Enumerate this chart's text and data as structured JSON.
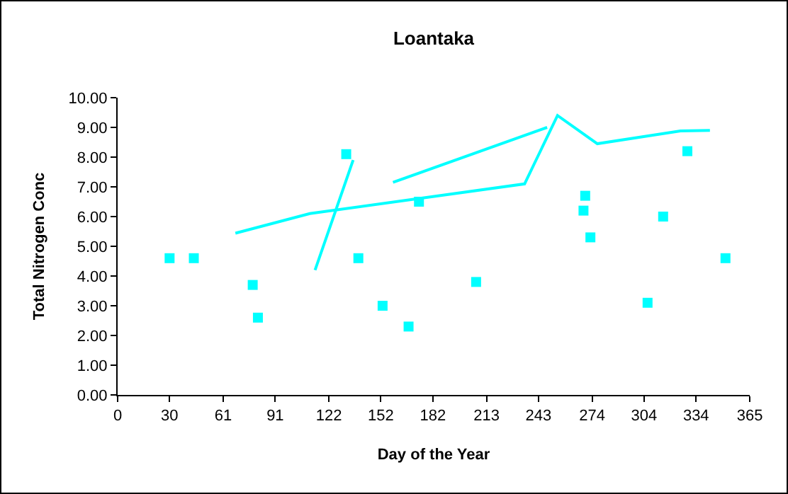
{
  "chart_data": {
    "type": "scatter",
    "title": "Loantaka",
    "xlabel": "Day of the Year",
    "ylabel": "Total Nitrogen Conc",
    "xlim": [
      0,
      365
    ],
    "xticks": [
      0,
      30,
      61,
      91,
      122,
      152,
      182,
      213,
      243,
      274,
      304,
      334,
      365
    ],
    "ylim": [
      0,
      10
    ],
    "yticks": [
      {
        "value": 0,
        "label": "0.00"
      },
      {
        "value": 1,
        "label": "1.00"
      },
      {
        "value": 2,
        "label": "2.00"
      },
      {
        "value": 3,
        "label": "3.00"
      },
      {
        "value": 4,
        "label": "4.00"
      },
      {
        "value": 5,
        "label": "5.00"
      },
      {
        "value": 6,
        "label": "6.00"
      },
      {
        "value": 7,
        "label": "7.00"
      },
      {
        "value": 8,
        "label": "8.00"
      },
      {
        "value": 9,
        "label": "9.00"
      },
      {
        "value": 10,
        "label": "10.00"
      }
    ],
    "grid": false,
    "series": [
      {
        "marker": "square",
        "color": "#00ffff",
        "x": [
          30,
          44,
          78,
          81,
          132,
          139,
          153,
          168,
          174,
          207,
          269,
          270,
          273,
          306,
          315,
          329,
          351
        ],
        "values": [
          4.6,
          4.6,
          3.7,
          2.6,
          8.1,
          4.6,
          3.0,
          2.3,
          6.5,
          3.8,
          6.2,
          6.7,
          5.3,
          3.1,
          6.0,
          8.2,
          4.6
        ]
      },
      {
        "type": "line",
        "marker": "none",
        "color": "#00ffff",
        "x": [
          114,
          136
        ],
        "values": [
          4.2,
          7.9
        ]
      },
      {
        "type": "line",
        "marker": "none",
        "color": "#00ffff",
        "x": [
          159,
          248
        ],
        "values": [
          7.15,
          9.0
        ]
      },
      {
        "type": "line",
        "marker": "none",
        "color": "#00ffff",
        "x": [
          68,
          111,
          235,
          254,
          277,
          325,
          342
        ],
        "values": [
          5.44,
          6.1,
          7.1,
          9.4,
          8.45,
          8.88,
          8.9
        ]
      }
    ]
  }
}
